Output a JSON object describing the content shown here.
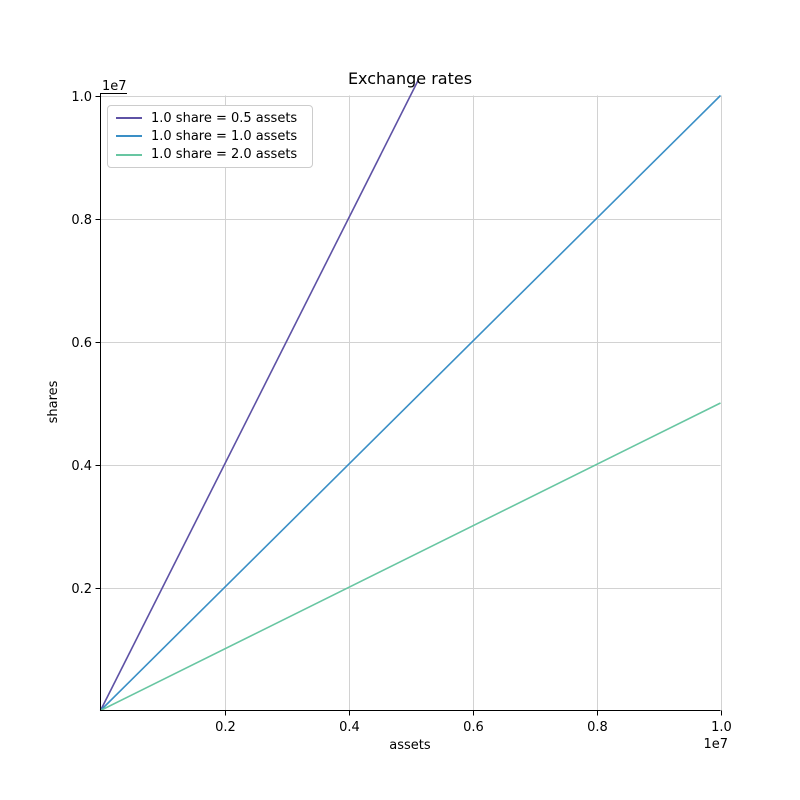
{
  "chart_data": {
    "type": "line",
    "title": "Exchange rates",
    "xlabel": "assets",
    "ylabel": "shares",
    "x_offset_text": "1e7",
    "y_offset_text": "1e7",
    "xlim": [
      0,
      10000000
    ],
    "ylim": [
      0,
      10000000
    ],
    "x_tick_values": [
      2000000,
      4000000,
      6000000,
      8000000,
      10000000
    ],
    "x_tick_labels": [
      "0.2",
      "0.4",
      "0.6",
      "0.8",
      "1.0"
    ],
    "y_tick_values": [
      2000000,
      4000000,
      6000000,
      8000000,
      10000000
    ],
    "y_tick_labels": [
      "0.2",
      "0.4",
      "0.6",
      "0.8",
      "1.0"
    ],
    "grid": true,
    "legend_position": "upper left",
    "colors": {
      "grid": "#d2d2d2",
      "spine": "#000000",
      "legend_border": "#cccccc",
      "background": "#ffffff"
    },
    "series": [
      {
        "name": "1.0 share = 0.5 assets",
        "color": "#5e52a5",
        "points": [
          [
            0,
            0
          ],
          [
            10000000,
            20000000
          ]
        ]
      },
      {
        "name": "1.0 share = 1.0 assets",
        "color": "#3a8fc6",
        "points": [
          [
            0,
            0
          ],
          [
            10000000,
            10000000
          ]
        ]
      },
      {
        "name": "1.0 share = 2.0 assets",
        "color": "#68c6a2",
        "points": [
          [
            0,
            0
          ],
          [
            10000000,
            5000000
          ]
        ]
      }
    ]
  }
}
